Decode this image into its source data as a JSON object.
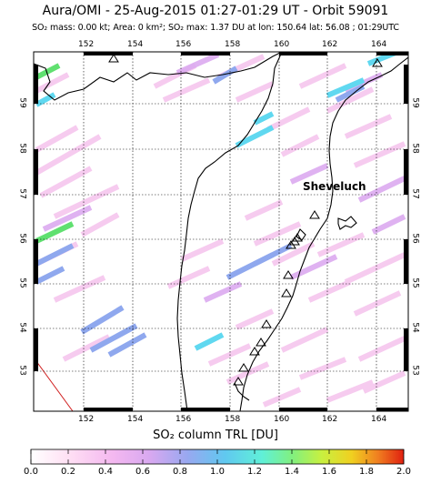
{
  "header": {
    "title": "Aura/OMI - 25-Aug-2015 01:27-01:29 UT - Orbit 59091",
    "subtitle": "SO₂ mass: 0.00 kt; Area: 0 km²; SO₂ max: 1.37 DU at lon: 150.64 lat: 56.08 ; 01:29UTC"
  },
  "map": {
    "lon_ticks": [
      "152",
      "154",
      "156",
      "158",
      "160",
      "162",
      "164"
    ],
    "lat_ticks": [
      "53",
      "54",
      "55",
      "56",
      "57",
      "58",
      "59"
    ],
    "volcano_label": "Sheveluch",
    "land_color": "#000000",
    "grid_style": "dotted"
  },
  "colorbar": {
    "label": "SO₂ column TRL [DU]",
    "ticks": [
      "0.0",
      "0.2",
      "0.4",
      "0.6",
      "0.8",
      "1.0",
      "1.2",
      "1.4",
      "1.6",
      "1.8",
      "2.0"
    ],
    "range": [
      0.0,
      2.0
    ],
    "colors": [
      "#ffffff",
      "#ffd6f0",
      "#f0b0f0",
      "#c8a0f0",
      "#8fa0f0",
      "#60c0f0",
      "#60f0e0",
      "#80f090",
      "#c0f040",
      "#f0d020",
      "#f08020",
      "#e02010"
    ]
  }
}
